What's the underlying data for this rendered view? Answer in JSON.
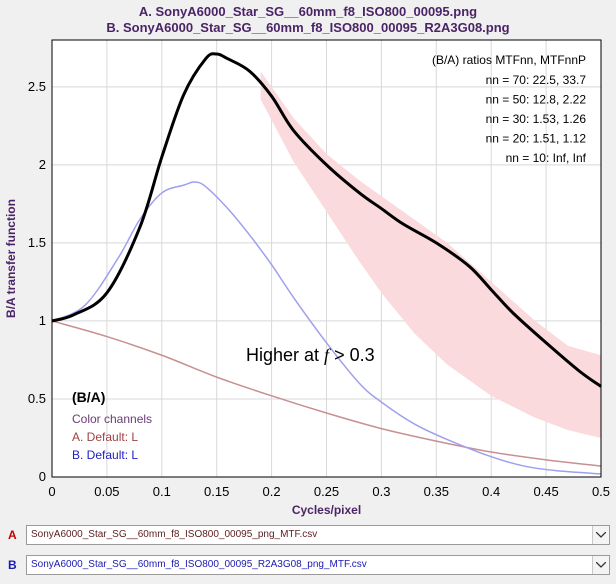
{
  "titles": {
    "line_a": "A.  SonyA6000_Star_SG__60mm_f8_ISO800_00095.png",
    "line_b": "B.  SonyA6000_Star_SG__60mm_f8_ISO800_00095_R2A3G08.png"
  },
  "ratios": {
    "header": "(B/A) ratios  MTFnn,  MTFnnP",
    "rows": [
      "nn = 70:  22.5,  33.7",
      "nn = 50:  12.8,  2.22",
      "nn = 30:  1.53,  1.26",
      "nn = 20:  1.51,  1.12",
      "nn = 10:  Inf,  Inf"
    ]
  },
  "annotation": {
    "prefix": "Higher at ",
    "italic": "f",
    "suffix": " > 0.3"
  },
  "legend": {
    "heading": "(B/A)",
    "subheading": "Color channels",
    "entry_a": "A.  Default: L",
    "entry_b": "B.  Default: L"
  },
  "files": {
    "tag_a": "A",
    "tag_b": "B",
    "file_a": "SonyA6000_Star_SG__60mm_f8_ISO800_00095_png_MTF.csv",
    "file_b": "SonyA6000_Star_SG__60mm_f8_ISO800_00095_R2A3G08_png_MTF.csv"
  },
  "colors": {
    "ratio_curve": "#000000",
    "curve_a": "#c89090",
    "curve_b": "#9f9fef",
    "shade": "#fadadd",
    "title": "#4b2466",
    "legend_a": "#a04040",
    "legend_b": "#2020c0"
  },
  "chart_data": {
    "type": "line",
    "xlabel": "Cycles/pixel",
    "ylabel": "B/A transfer function",
    "xlim": [
      0,
      0.5
    ],
    "ylim": [
      0,
      2.8
    ],
    "xticks": [
      "0",
      "0.05",
      "0.1",
      "0.15",
      "0.2",
      "0.25",
      "0.3",
      "0.35",
      "0.4",
      "0.45",
      "0.5"
    ],
    "yticks": [
      "0",
      "0.5",
      "1",
      "1.5",
      "2",
      "2.5"
    ],
    "grid": true,
    "series": [
      {
        "name": "(B/A)",
        "x": [
          0,
          0.02,
          0.05,
          0.08,
          0.1,
          0.12,
          0.14,
          0.15,
          0.16,
          0.18,
          0.2,
          0.22,
          0.25,
          0.28,
          0.3,
          0.32,
          0.35,
          0.38,
          0.4,
          0.42,
          0.45,
          0.48,
          0.5
        ],
        "y": [
          1.0,
          1.04,
          1.18,
          1.6,
          2.05,
          2.45,
          2.68,
          2.71,
          2.68,
          2.6,
          2.44,
          2.22,
          2.0,
          1.82,
          1.72,
          1.62,
          1.5,
          1.35,
          1.2,
          1.05,
          0.86,
          0.68,
          0.58
        ]
      },
      {
        "name": "A.  Default: L",
        "x": [
          0,
          0.05,
          0.1,
          0.15,
          0.2,
          0.25,
          0.3,
          0.35,
          0.4,
          0.45,
          0.5
        ],
        "y": [
          1.0,
          0.9,
          0.78,
          0.64,
          0.52,
          0.41,
          0.31,
          0.23,
          0.16,
          0.11,
          0.07
        ]
      },
      {
        "name": "B.  Default: L",
        "x": [
          0,
          0.03,
          0.06,
          0.08,
          0.1,
          0.12,
          0.13,
          0.14,
          0.16,
          0.18,
          0.2,
          0.22,
          0.25,
          0.28,
          0.3,
          0.33,
          0.36,
          0.4,
          0.43,
          0.46,
          0.5
        ],
        "y": [
          1.0,
          1.1,
          1.4,
          1.65,
          1.82,
          1.87,
          1.89,
          1.86,
          1.72,
          1.55,
          1.36,
          1.15,
          0.86,
          0.6,
          0.48,
          0.34,
          0.24,
          0.13,
          0.07,
          0.04,
          0.02
        ]
      }
    ],
    "shaded_band": {
      "x": [
        0.19,
        0.22,
        0.25,
        0.28,
        0.3,
        0.33,
        0.36,
        0.4,
        0.44,
        0.47,
        0.5
      ],
      "upper": [
        2.6,
        2.3,
        2.07,
        1.9,
        1.8,
        1.65,
        1.5,
        1.25,
        1.0,
        0.84,
        0.78
      ],
      "lower": [
        2.42,
        2.02,
        1.7,
        1.38,
        1.18,
        0.92,
        0.72,
        0.52,
        0.38,
        0.3,
        0.25
      ]
    }
  }
}
